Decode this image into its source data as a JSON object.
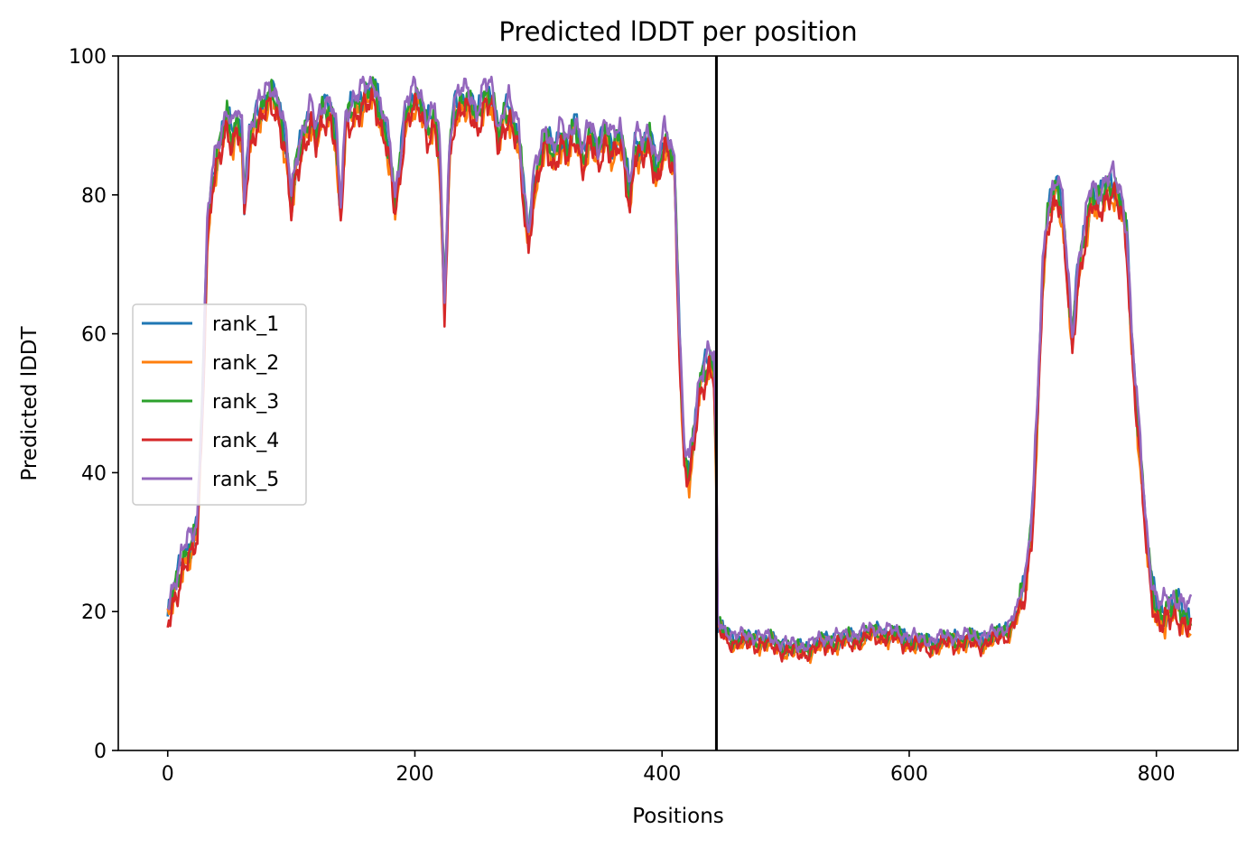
{
  "chart_data": {
    "type": "line",
    "title": "Predicted lDDT per position",
    "xlabel": "Positions",
    "ylabel": "Predicted lDDT",
    "xlim": [
      -40,
      866
    ],
    "ylim": [
      0,
      100
    ],
    "xticks": [
      0,
      200,
      400,
      600,
      800
    ],
    "yticks": [
      0,
      20,
      40,
      60,
      80,
      100
    ],
    "chain_break_x": 444,
    "legend": {
      "placement": "center-left"
    },
    "grid": false,
    "series": [
      {
        "name": "rank_1",
        "color": "#1f77b4",
        "offset": 0.3,
        "amp": 0.9,
        "phase": 0.0
      },
      {
        "name": "rank_2",
        "color": "#ff7f0e",
        "offset": -1.2,
        "amp": 1.1,
        "phase": 1.3
      },
      {
        "name": "rank_3",
        "color": "#2ca02c",
        "offset": 0.0,
        "amp": 1.0,
        "phase": 2.1
      },
      {
        "name": "rank_4",
        "color": "#d62728",
        "offset": -1.6,
        "amp": 1.0,
        "phase": 3.4
      },
      {
        "name": "rank_5",
        "color": "#9467bd",
        "offset": 1.3,
        "amp": 0.8,
        "phase": 4.6
      }
    ],
    "baseline_profile": [
      [
        0,
        19
      ],
      [
        4,
        22
      ],
      [
        8,
        25
      ],
      [
        12,
        28
      ],
      [
        16,
        29
      ],
      [
        20,
        29
      ],
      [
        24,
        32
      ],
      [
        28,
        50
      ],
      [
        32,
        75
      ],
      [
        36,
        82
      ],
      [
        40,
        85
      ],
      [
        44,
        88
      ],
      [
        48,
        92
      ],
      [
        52,
        89
      ],
      [
        56,
        91
      ],
      [
        60,
        88
      ],
      [
        62,
        78
      ],
      [
        66,
        88
      ],
      [
        72,
        92
      ],
      [
        78,
        93
      ],
      [
        84,
        94
      ],
      [
        90,
        93
      ],
      [
        96,
        87
      ],
      [
        100,
        78
      ],
      [
        104,
        84
      ],
      [
        110,
        89
      ],
      [
        116,
        92
      ],
      [
        120,
        88
      ],
      [
        126,
        92
      ],
      [
        132,
        93
      ],
      [
        136,
        89
      ],
      [
        140,
        77
      ],
      [
        144,
        90
      ],
      [
        150,
        93
      ],
      [
        156,
        94
      ],
      [
        162,
        94
      ],
      [
        168,
        95
      ],
      [
        172,
        92
      ],
      [
        176,
        90
      ],
      [
        180,
        85
      ],
      [
        184,
        78
      ],
      [
        188,
        84
      ],
      [
        192,
        92
      ],
      [
        198,
        94
      ],
      [
        204,
        93
      ],
      [
        210,
        90
      ],
      [
        216,
        92
      ],
      [
        220,
        86
      ],
      [
        224,
        63
      ],
      [
        228,
        86
      ],
      [
        232,
        93
      ],
      [
        238,
        94
      ],
      [
        244,
        93
      ],
      [
        250,
        91
      ],
      [
        256,
        95
      ],
      [
        262,
        94
      ],
      [
        268,
        88
      ],
      [
        272,
        92
      ],
      [
        276,
        93
      ],
      [
        280,
        90
      ],
      [
        284,
        88
      ],
      [
        288,
        80
      ],
      [
        292,
        74
      ],
      [
        296,
        82
      ],
      [
        300,
        84
      ],
      [
        306,
        88
      ],
      [
        312,
        86
      ],
      [
        318,
        89
      ],
      [
        324,
        86
      ],
      [
        330,
        90
      ],
      [
        336,
        86
      ],
      [
        342,
        89
      ],
      [
        348,
        85
      ],
      [
        354,
        90
      ],
      [
        360,
        87
      ],
      [
        366,
        88
      ],
      [
        370,
        85
      ],
      [
        374,
        80
      ],
      [
        378,
        88
      ],
      [
        384,
        86
      ],
      [
        390,
        88
      ],
      [
        396,
        84
      ],
      [
        402,
        88
      ],
      [
        406,
        86
      ],
      [
        410,
        84
      ],
      [
        414,
        60
      ],
      [
        418,
        43
      ],
      [
        422,
        40
      ],
      [
        426,
        45
      ],
      [
        430,
        52
      ],
      [
        434,
        55
      ],
      [
        438,
        57
      ],
      [
        442,
        55
      ],
      [
        444,
        40
      ],
      [
        445,
        18
      ],
      [
        450,
        17
      ],
      [
        460,
        16
      ],
      [
        470,
        16
      ],
      [
        480,
        16
      ],
      [
        490,
        15.5
      ],
      [
        500,
        15
      ],
      [
        510,
        14.5
      ],
      [
        520,
        15
      ],
      [
        530,
        15.5
      ],
      [
        540,
        16
      ],
      [
        550,
        16
      ],
      [
        560,
        16.5
      ],
      [
        570,
        17
      ],
      [
        580,
        17
      ],
      [
        590,
        16.5
      ],
      [
        600,
        16
      ],
      [
        610,
        15.5
      ],
      [
        620,
        15.5
      ],
      [
        630,
        16
      ],
      [
        640,
        16
      ],
      [
        650,
        16
      ],
      [
        660,
        16
      ],
      [
        670,
        16.5
      ],
      [
        680,
        17.5
      ],
      [
        688,
        20
      ],
      [
        694,
        24
      ],
      [
        700,
        35
      ],
      [
        704,
        50
      ],
      [
        708,
        68
      ],
      [
        712,
        76
      ],
      [
        716,
        80
      ],
      [
        720,
        82
      ],
      [
        724,
        78
      ],
      [
        728,
        68
      ],
      [
        732,
        58
      ],
      [
        736,
        68
      ],
      [
        740,
        73
      ],
      [
        744,
        77
      ],
      [
        748,
        80
      ],
      [
        752,
        78
      ],
      [
        756,
        80
      ],
      [
        760,
        82
      ],
      [
        764,
        82
      ],
      [
        768,
        80
      ],
      [
        772,
        78
      ],
      [
        776,
        74
      ],
      [
        780,
        60
      ],
      [
        784,
        50
      ],
      [
        788,
        40
      ],
      [
        792,
        30
      ],
      [
        796,
        24
      ],
      [
        800,
        21
      ],
      [
        806,
        20
      ],
      [
        812,
        20
      ],
      [
        818,
        21
      ],
      [
        824,
        20
      ],
      [
        828,
        19
      ]
    ]
  }
}
